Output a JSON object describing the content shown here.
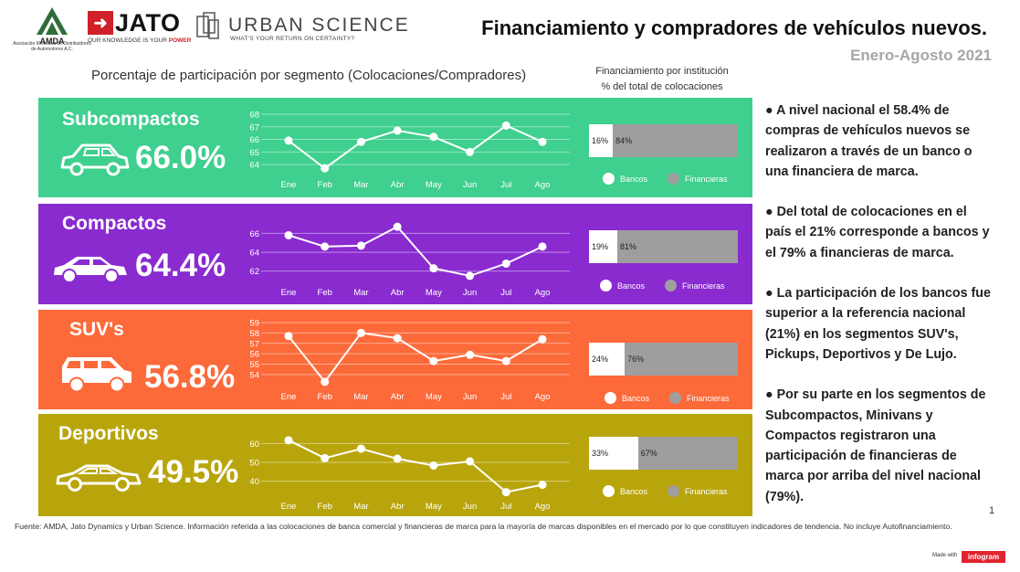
{
  "header": {
    "amda_logo_text": "Asociación Mexicana de Distribuidores de Automotores A.C.",
    "jato_logo": "JATO",
    "jato_tagline_plain": "OUR KNOWLEDGE IS YOUR ",
    "jato_tagline_power": "POWER",
    "urban_science_logo": "URBAN SCIENCE",
    "urban_science_tagline": "WHAT'S YOUR RETURN ON CERTAINTY?",
    "title": "Financiamiento y compradores de vehículos nuevos.",
    "period": "Enero-Agosto  2021"
  },
  "subtitle": "Porcentaje de participación por segmento (Colocaciones/Compradores)",
  "financing_header": {
    "line1": "Financiamiento por institución",
    "line2": "% del total de colocaciones"
  },
  "legend": {
    "bancos": "Bancos",
    "financieras": "Financieras"
  },
  "colors": {
    "subcompactos": "#3fcf8e",
    "compactos": "#8a2bd0",
    "suvs": "#fc6a3a",
    "deportivos": "#b8a50c",
    "bancos": "#ffffff",
    "financieras": "#9e9e9e"
  },
  "chart_data": [
    {
      "type": "line",
      "title": "Subcompactos",
      "total": "66.0%",
      "categories": [
        "Ene",
        "Feb",
        "Mar",
        "Abr",
        "May",
        "Jun",
        "Jul",
        "Ago"
      ],
      "values": [
        65.9,
        63.7,
        65.8,
        66.7,
        66.2,
        65.0,
        67.1,
        65.8
      ],
      "yticks": [
        "68",
        "67",
        "66",
        "65",
        "64"
      ],
      "ylim": [
        63.5,
        68
      ],
      "financing": {
        "bancos": 16,
        "financieras": 84,
        "bancos_label": "16%",
        "financieras_label": "84%"
      }
    },
    {
      "type": "line",
      "title": "Compactos",
      "total": "64.4%",
      "categories": [
        "Ene",
        "Feb",
        "Mar",
        "Abr",
        "May",
        "Jun",
        "Jul",
        "Ago"
      ],
      "values": [
        65.8,
        64.6,
        64.7,
        66.7,
        62.3,
        61.5,
        62.8,
        64.6
      ],
      "yticks": [
        "66",
        "64",
        "62"
      ],
      "ylim": [
        61.2,
        67.2
      ],
      "financing": {
        "bancos": 19,
        "financieras": 81,
        "bancos_label": "19%",
        "financieras_label": "81%"
      }
    },
    {
      "type": "line",
      "title": "SUV's",
      "total": "56.8%",
      "categories": [
        "Ene",
        "Feb",
        "Mar",
        "Abr",
        "May",
        "Jun",
        "Jul",
        "Ago"
      ],
      "values": [
        57.7,
        53.3,
        58.0,
        57.5,
        55.3,
        55.9,
        55.3,
        57.4
      ],
      "yticks": [
        "59",
        "58",
        "57",
        "56",
        "55",
        "54"
      ],
      "ylim": [
        53.2,
        59
      ],
      "financing": {
        "bancos": 24,
        "financieras": 76,
        "bancos_label": "24%",
        "financieras_label": "76%"
      }
    },
    {
      "type": "line",
      "title": "Deportivos",
      "total": "49.5%",
      "categories": [
        "Ene",
        "Feb",
        "Mar",
        "Abr",
        "May",
        "Jun",
        "Jul",
        "Ago"
      ],
      "values": [
        61.7,
        52.2,
        57.2,
        51.9,
        48.3,
        50.5,
        34.2,
        38.1
      ],
      "yticks": [
        "60",
        "50",
        "40"
      ],
      "ylim": [
        34,
        65
      ],
      "financing": {
        "bancos": 33,
        "financieras": 67,
        "bancos_label": "33%",
        "financieras_label": "67%"
      }
    }
  ],
  "bullets": [
    "A nivel nacional el 58.4% de compras de vehículos nuevos se realizaron a través de un banco o una financiera de marca.",
    "Del total de colocaciones en el país el 21% corresponde a bancos y el 79% a financieras de marca.",
    "La participación de los bancos fue superior a la referencia nacional (21%) en los segmentos SUV's, Pickups, Deportivos y De Lujo.",
    "Por su parte en los segmentos de Subcompactos, Minivans y Compactos registraron una participación de financieras de marca por arriba del nivel nacional (79%)."
  ],
  "page_number": "1",
  "footer": "Fuente: AMDA, Jato Dynamics y Urban Science. Información referida a las colocaciones de banca comercial y financieras de marca para la mayoría de marcas disponibles en el mercado por lo que constituyen indicadores de tendencia. No incluye Autofinanciamiento.",
  "made_with": "Made with",
  "infogram": "infogram"
}
